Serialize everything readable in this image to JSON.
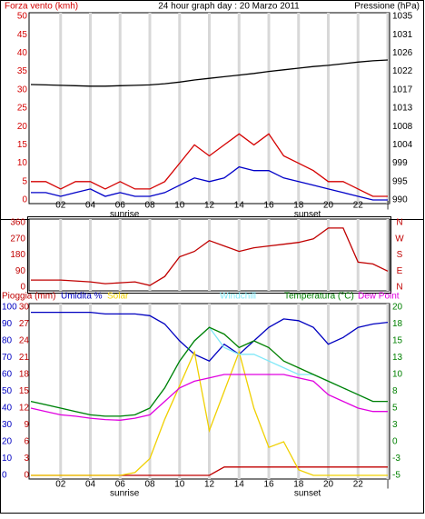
{
  "chart_data": [
    {
      "type": "line",
      "title": "24 hour graph day : 20 Marzo 2011",
      "y_label": "Forza vento (kmh)",
      "y2_label": "Pressione (hPa)",
      "x": [
        0,
        1,
        2,
        3,
        4,
        5,
        6,
        7,
        8,
        9,
        10,
        11,
        12,
        13,
        14,
        15,
        16,
        17,
        18,
        19,
        20,
        21,
        22,
        23,
        24
      ],
      "xlim": [
        0,
        24
      ],
      "xticks": [
        {
          "value": 2,
          "label": "02"
        },
        {
          "value": 4,
          "label": "04"
        },
        {
          "value": 6,
          "label": "06"
        },
        {
          "value": 8,
          "label": "08"
        },
        {
          "value": 10,
          "label": "10"
        },
        {
          "value": 12,
          "label": "12"
        },
        {
          "value": 14,
          "label": "14"
        },
        {
          "value": 16,
          "label": "16"
        },
        {
          "value": 18,
          "label": "18"
        },
        {
          "value": 20,
          "label": "20"
        },
        {
          "value": 22,
          "label": "22"
        },
        {
          "value": 24,
          "label": "|"
        }
      ],
      "ylim": [
        0,
        50
      ],
      "yticks": [
        0,
        5,
        10,
        15,
        20,
        25,
        30,
        35,
        40,
        45,
        50
      ],
      "y2lim": [
        990,
        1035
      ],
      "y2ticks": [
        990,
        {
          "value": 994.5,
          "label": "995"
        },
        999,
        {
          "value": 1003.5,
          "label": "1004"
        },
        1008,
        {
          "value": 1012.5,
          "label": "1013"
        },
        1017,
        {
          "value": 1021.5,
          "label": "1022"
        },
        1026,
        {
          "value": 1030.5,
          "label": "1031"
        },
        1035
      ],
      "grid": true,
      "annotations": [
        {
          "text": "sunrise",
          "x": 6.3
        },
        {
          "text": "sunset",
          "x": 18.6
        }
      ],
      "series": [
        {
          "color": "#d40000",
          "values": [
            5,
            5,
            3,
            5,
            5,
            3,
            5,
            3,
            3,
            5,
            10,
            15,
            12,
            15,
            18,
            15,
            18,
            12,
            10,
            8,
            5,
            5,
            3,
            1,
            1
          ]
        },
        {
          "color": "#0000c8",
          "values": [
            2,
            2,
            1,
            2,
            3,
            1,
            2,
            1,
            1,
            2,
            4,
            6,
            5,
            6,
            9,
            8,
            8,
            6,
            5,
            4,
            3,
            2,
            1,
            0,
            0
          ]
        },
        {
          "color": "#000000",
          "axis": "y2",
          "values": [
            1018.3,
            1018.2,
            1018.1,
            1018.0,
            1017.9,
            1017.9,
            1018.0,
            1018.1,
            1018.2,
            1018.5,
            1018.9,
            1019.4,
            1019.8,
            1020.2,
            1020.6,
            1021.0,
            1021.5,
            1021.9,
            1022.3,
            1022.7,
            1023.0,
            1023.4,
            1023.8,
            1024.1,
            1024.3
          ]
        }
      ]
    },
    {
      "type": "line",
      "x": [
        0,
        1,
        2,
        3,
        4,
        5,
        6,
        7,
        8,
        9,
        10,
        11,
        12,
        13,
        14,
        15,
        16,
        17,
        18,
        19,
        20,
        21,
        22,
        23,
        24
      ],
      "xlim": [
        0,
        24
      ],
      "ylim": [
        0,
        360
      ],
      "yticks": [
        0,
        90,
        180,
        270,
        360
      ],
      "y2lim": [
        0,
        360
      ],
      "y2ticks": [
        {
          "value": 0,
          "label": "N"
        },
        {
          "value": 90,
          "label": "E"
        },
        {
          "value": 180,
          "label": "S"
        },
        {
          "value": 270,
          "label": "W"
        },
        {
          "value": 360,
          "label": "N"
        }
      ],
      "grid": true,
      "series": [
        {
          "color": "#c00000",
          "values": [
            40,
            40,
            40,
            35,
            30,
            20,
            25,
            30,
            10,
            60,
            170,
            200,
            260,
            230,
            200,
            220,
            230,
            240,
            250,
            270,
            330,
            330,
            140,
            130,
            90
          ]
        }
      ]
    },
    {
      "type": "line",
      "x": [
        0,
        1,
        2,
        3,
        4,
        5,
        6,
        7,
        8,
        9,
        10,
        11,
        12,
        13,
        14,
        15,
        16,
        17,
        18,
        19,
        20,
        21,
        22,
        23,
        24
      ],
      "xlim": [
        0,
        24
      ],
      "xticks": [
        {
          "value": 2,
          "label": "02"
        },
        {
          "value": 4,
          "label": "04"
        },
        {
          "value": 6,
          "label": "06"
        },
        {
          "value": 8,
          "label": "08"
        },
        {
          "value": 10,
          "label": "10"
        },
        {
          "value": 12,
          "label": "12"
        },
        {
          "value": 14,
          "label": "14"
        },
        {
          "value": 16,
          "label": "16"
        },
        {
          "value": 18,
          "label": "18"
        },
        {
          "value": 20,
          "label": "20"
        },
        {
          "value": 22,
          "label": "22"
        },
        {
          "value": 24,
          "label": "|"
        }
      ],
      "ylim": [
        0,
        100
      ],
      "yticks": [
        0,
        10,
        20,
        30,
        40,
        50,
        60,
        70,
        80,
        90,
        100
      ],
      "y3lim": [
        0,
        30
      ],
      "y3ticks": [
        0,
        3,
        6,
        9,
        12,
        15,
        18,
        21,
        24,
        27,
        30
      ],
      "y2lim": [
        -5,
        20
      ],
      "y2ticks": [
        -5,
        {
          "value": -2.5,
          "label": "-3"
        },
        0,
        {
          "value": 2.5,
          "label": "3"
        },
        5,
        {
          "value": 7.5,
          "label": "8"
        },
        10,
        {
          "value": 12.5,
          "label": "13"
        },
        15,
        {
          "value": 17.5,
          "label": "18"
        },
        20
      ],
      "grid": true,
      "annotations": [
        {
          "text": "sunrise",
          "x": 6.3
        },
        {
          "text": "sunset",
          "x": 18.6
        }
      ],
      "series": [
        {
          "name": "Pioggia (mm)",
          "color": "#c00000",
          "axis": "y3",
          "values": [
            0,
            0,
            0,
            0,
            0,
            0,
            0,
            0,
            0,
            0,
            0,
            0,
            0,
            1.5,
            1.5,
            1.5,
            1.5,
            1.5,
            1.5,
            1.5,
            1.5,
            1.5,
            1.5,
            1.5,
            1.5
          ]
        },
        {
          "name": "Umidita %",
          "color": "#0000c0",
          "values": [
            97,
            97,
            97,
            97,
            97,
            96,
            96,
            96,
            95,
            90,
            80,
            72,
            68,
            78,
            72,
            80,
            88,
            93,
            92,
            88,
            78,
            82,
            88,
            90,
            91
          ]
        },
        {
          "name": "Solar",
          "color": "#f0d000",
          "axis": "y3",
          "values": [
            0,
            0,
            0,
            0,
            0,
            0,
            0,
            0.5,
            3,
            10,
            16,
            22,
            8,
            15,
            22,
            12,
            5,
            6,
            1,
            0,
            0,
            0,
            0,
            0,
            0
          ]
        },
        {
          "name": "Windchill",
          "color": "#80e8f8",
          "axis": "y2",
          "values": [
            6,
            5.5,
            5,
            4.5,
            4,
            3.8,
            3.8,
            4,
            5,
            8,
            12,
            15,
            17,
            14,
            13,
            13,
            12,
            11,
            10,
            10,
            9,
            8,
            7,
            6,
            6
          ]
        },
        {
          "name": "Temperatura (°C)",
          "color": "#008000",
          "axis": "y2",
          "values": [
            6,
            5.5,
            5,
            4.5,
            4,
            3.8,
            3.8,
            4,
            5,
            8,
            12,
            15,
            17,
            16,
            14,
            15,
            14,
            12,
            11,
            10,
            9,
            8,
            7,
            6,
            6
          ]
        },
        {
          "name": "Dew Point",
          "color": "#e000e0",
          "axis": "y2",
          "values": [
            5,
            4.5,
            4,
            3.8,
            3.5,
            3.3,
            3.2,
            3.5,
            4,
            6,
            8,
            9,
            9.5,
            10,
            10,
            10,
            10,
            10,
            9.5,
            9,
            7,
            6,
            5,
            4.5,
            4.5
          ]
        }
      ]
    }
  ]
}
